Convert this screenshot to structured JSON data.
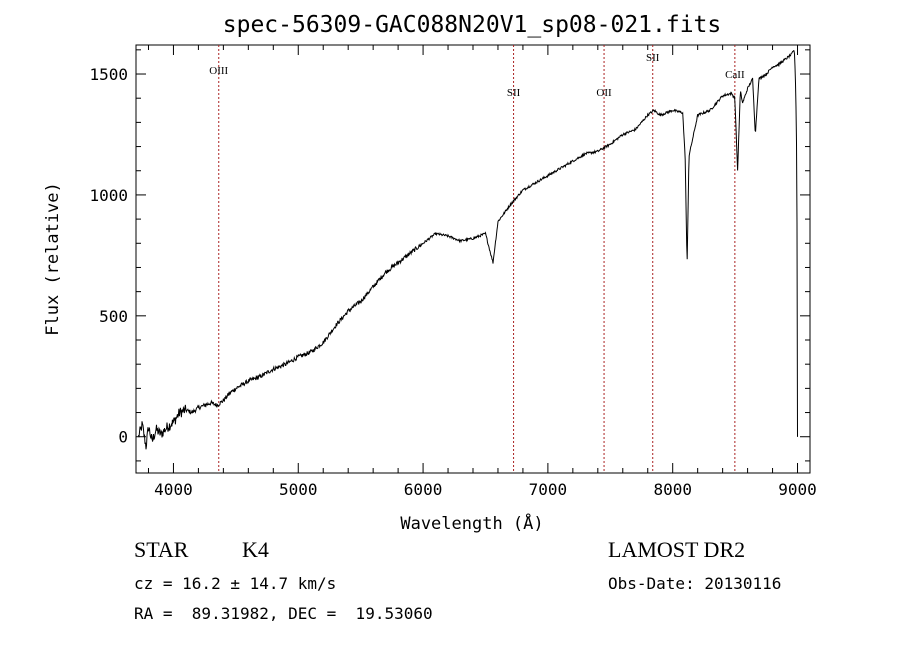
{
  "chart_data": {
    "type": "line",
    "title": "spec-56309-GAC088N20V1_sp08-021.fits",
    "xlabel": "Wavelength (Å)",
    "ylabel": "Flux (relative)",
    "xlim": [
      3700,
      9100
    ],
    "ylim": [
      -150,
      1620
    ],
    "xticks": [
      4000,
      5000,
      6000,
      7000,
      8000,
      9000
    ],
    "yticks": [
      0,
      500,
      1000,
      1500
    ],
    "grid": false,
    "line_color": "#000000",
    "line_marker_color": "#aa2222",
    "series": [
      {
        "x": [
          3720,
          3750,
          3780,
          3800,
          3830,
          3860,
          3900,
          3950,
          4000,
          4050,
          4100,
          4150,
          4200,
          4250,
          4300,
          4350,
          4400,
          4450,
          4500,
          4600,
          4700,
          4800,
          4900,
          5000,
          5100,
          5200,
          5300,
          5400,
          5500,
          5600,
          5700,
          5800,
          5900,
          6000,
          6100,
          6200,
          6300,
          6400,
          6500,
          6560,
          6600,
          6700,
          6800,
          6900,
          7000,
          7100,
          7200,
          7300,
          7400,
          7500,
          7600,
          7700,
          7800,
          7850,
          7900,
          8000,
          8080,
          8100,
          8115,
          8130,
          8200,
          8300,
          8400,
          8470,
          8498,
          8520,
          8542,
          8560,
          8600,
          8640,
          8662,
          8690,
          8750,
          8800,
          8850,
          8900,
          8950,
          8975,
          8985,
          8990,
          8995,
          9000
        ],
        "y": [
          0,
          50,
          -40,
          40,
          -20,
          30,
          10,
          40,
          60,
          100,
          110,
          100,
          120,
          130,
          140,
          130,
          150,
          180,
          200,
          230,
          250,
          280,
          300,
          330,
          350,
          390,
          460,
          520,
          560,
          620,
          680,
          720,
          760,
          800,
          840,
          830,
          810,
          820,
          840,
          720,
          890,
          960,
          1020,
          1050,
          1080,
          1110,
          1140,
          1170,
          1180,
          1210,
          1250,
          1270,
          1330,
          1350,
          1330,
          1350,
          1340,
          1150,
          700,
          1160,
          1330,
          1350,
          1410,
          1420,
          1400,
          1100,
          1430,
          1380,
          1440,
          1480,
          1250,
          1480,
          1500,
          1530,
          1540,
          1560,
          1580,
          1600,
          1450,
          1300,
          1100,
          0
        ]
      }
    ],
    "lines": [
      {
        "label": "OIII",
        "x": 4363
      },
      {
        "label": "SII",
        "x": 6725
      },
      {
        "label": "OII",
        "x": 7450
      },
      {
        "label": "SII",
        "x": 7840
      },
      {
        "label": "CaII",
        "x": 8498
      }
    ]
  },
  "info": {
    "object_class": "STAR",
    "subclass": "K4",
    "survey": "LAMOST DR2",
    "redshift_text": "cz = 16.2 ± 14.7 km/s",
    "obs_date_text": "Obs-Date: 20130116",
    "coords_text": "RA =  89.31982, DEC =  19.53060"
  }
}
